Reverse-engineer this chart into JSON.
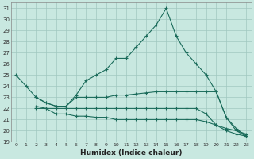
{
  "xlabel": "Humidex (Indice chaleur)",
  "bg_color": "#c8e8e0",
  "grid_color": "#a0c8c0",
  "line_color": "#1a6b5a",
  "xlim": [
    -0.5,
    23.5
  ],
  "ylim": [
    19,
    31.5
  ],
  "yticks": [
    19,
    20,
    21,
    22,
    23,
    24,
    25,
    26,
    27,
    28,
    29,
    30,
    31
  ],
  "xticks": [
    0,
    1,
    2,
    3,
    4,
    5,
    6,
    7,
    8,
    9,
    10,
    11,
    12,
    13,
    14,
    15,
    16,
    17,
    18,
    19,
    20,
    21,
    22,
    23
  ],
  "lines": [
    {
      "x": [
        0,
        1,
        2,
        3,
        4,
        5,
        6,
        7,
        8,
        9,
        10,
        11,
        12,
        13,
        14,
        15,
        16,
        17,
        18,
        19,
        20,
        21,
        22,
        23
      ],
      "y": [
        25.0,
        24.0,
        23.0,
        22.5,
        22.2,
        22.2,
        23.2,
        24.5,
        25.0,
        25.5,
        26.5,
        26.5,
        27.5,
        28.5,
        29.5,
        31.0,
        28.5,
        27.0,
        26.0,
        25.0,
        23.5,
        21.2,
        20.0,
        19.5
      ]
    },
    {
      "x": [
        2,
        3,
        4,
        5,
        6,
        7,
        8,
        9,
        10,
        11,
        12,
        13,
        14,
        15,
        16,
        17,
        18,
        19,
        20,
        21,
        22,
        23
      ],
      "y": [
        23.0,
        22.5,
        22.2,
        22.2,
        23.0,
        23.0,
        23.0,
        23.0,
        23.2,
        23.2,
        23.3,
        23.4,
        23.5,
        23.5,
        23.5,
        23.5,
        23.5,
        23.5,
        23.5,
        21.2,
        20.2,
        19.5
      ]
    },
    {
      "x": [
        2,
        3,
        4,
        5,
        6,
        7,
        8,
        9,
        10,
        11,
        12,
        13,
        14,
        15,
        16,
        17,
        18,
        19,
        20,
        21,
        22,
        23
      ],
      "y": [
        22.2,
        22.0,
        22.0,
        22.0,
        22.0,
        22.0,
        22.0,
        22.0,
        22.0,
        22.0,
        22.0,
        22.0,
        22.0,
        22.0,
        22.0,
        22.0,
        22.0,
        21.5,
        20.5,
        20.2,
        20.0,
        19.7
      ]
    },
    {
      "x": [
        2,
        3,
        4,
        5,
        6,
        7,
        8,
        9,
        10,
        11,
        12,
        13,
        14,
        15,
        16,
        17,
        18,
        19,
        20,
        21,
        22,
        23
      ],
      "y": [
        22.0,
        22.0,
        21.5,
        21.5,
        21.3,
        21.3,
        21.2,
        21.2,
        21.0,
        21.0,
        21.0,
        21.0,
        21.0,
        21.0,
        21.0,
        21.0,
        21.0,
        20.8,
        20.5,
        20.0,
        19.7,
        19.5
      ]
    }
  ]
}
